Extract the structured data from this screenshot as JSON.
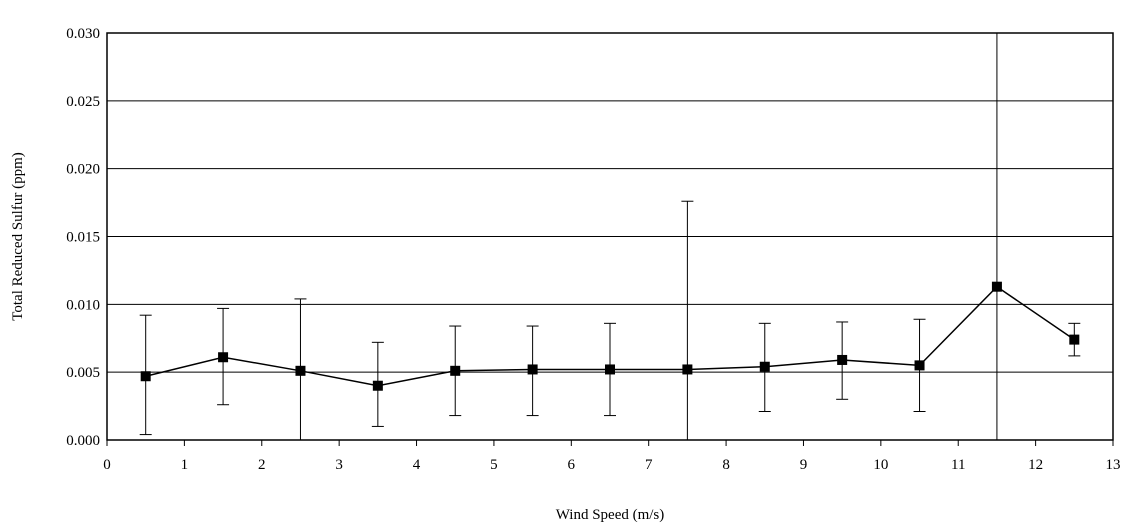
{
  "chart_data": {
    "type": "line",
    "title": "",
    "xlabel": "Wind Speed (m/s)",
    "ylabel": "Total Reduced Sulfur (ppm)",
    "xlim": [
      0,
      13
    ],
    "ylim": [
      0,
      0.03
    ],
    "x_ticks": [
      "0",
      "1",
      "2",
      "3",
      "4",
      "5",
      "6",
      "7",
      "8",
      "9",
      "10",
      "11",
      "12",
      "13"
    ],
    "y_ticks": [
      "0.000",
      "0.005",
      "0.010",
      "0.015",
      "0.020",
      "0.025",
      "0.030"
    ],
    "grid": "horizontal",
    "legend": "none",
    "marker": "square",
    "colors": {
      "line": "#000000",
      "marker": "#000000",
      "grid": "#000000"
    },
    "series": [
      {
        "x": [
          0.5,
          1.5,
          2.5,
          3.5,
          4.5,
          5.5,
          6.5,
          7.5,
          8.5,
          9.5,
          10.5,
          11.5,
          12.5
        ],
        "values": [
          0.0047,
          0.0061,
          0.0051,
          0.004,
          0.0051,
          0.0052,
          0.0052,
          0.0052,
          0.0054,
          0.0059,
          0.0055,
          0.0113,
          0.0074
        ],
        "error_low": [
          0.0004,
          0.0026,
          0.0,
          0.001,
          0.0018,
          0.0018,
          0.0018,
          0.0,
          0.0021,
          0.003,
          0.0021,
          0.0,
          0.0062
        ],
        "error_high": [
          0.0092,
          0.0097,
          0.0104,
          0.0072,
          0.0084,
          0.0084,
          0.0086,
          0.0176,
          0.0086,
          0.0087,
          0.0089,
          0.03,
          0.0086
        ]
      }
    ]
  }
}
